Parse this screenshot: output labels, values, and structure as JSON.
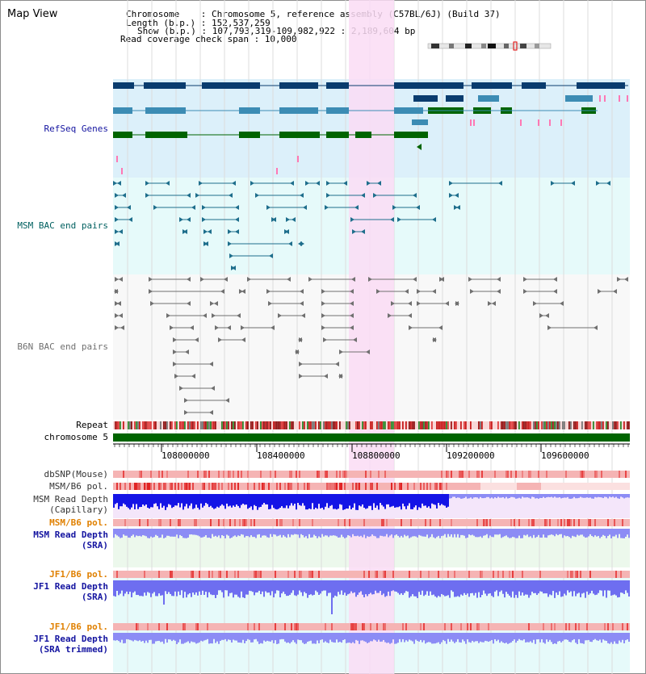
{
  "page": {
    "title": "Map View"
  },
  "info": {
    "chromosome": "Chromosome    : Chromosome 5, reference assembly (C57BL/6J) (Build 37)",
    "length": "Length (b.p.) : 152,537,259",
    "show": "Show (b.p.) : 107,793,319-109,982,922 : 2,189,604 bp",
    "span": "Read coverage check span : 10,000"
  },
  "tracks": {
    "refseq": {
      "label": "RefSeq Genes",
      "color": "#1414a0"
    },
    "msm_bac": {
      "label": "MSM BAC end pairs",
      "color": "#006060"
    },
    "b6n_bac": {
      "label": "B6N BAC end pairs",
      "color": "#707070"
    },
    "repeat": {
      "label": "Repeat"
    },
    "chromosome": {
      "label": "chromosome 5"
    },
    "dbsnp": {
      "label": "dbSNP(Mouse)"
    },
    "msm_b6_pol": {
      "label": "MSM/B6 pol."
    },
    "msm_depth_cap": {
      "label": "MSM Read Depth",
      "sub": "(Capillary)"
    },
    "msm_b6_pol2": {
      "label": "MSM/B6 pol.",
      "color": "#e08000"
    },
    "msm_depth_sra": {
      "label": "MSM Read Depth",
      "sub": "(SRA)",
      "color": "#1414a0"
    },
    "jf1_b6_pol": {
      "label": "JF1/B6 pol.",
      "color": "#e08000"
    },
    "jf1_depth_sra": {
      "label": "JF1 Read Depth",
      "sub": "(SRA)",
      "color": "#1414a0"
    },
    "jf1_b6_pol2": {
      "label": "JF1/B6 pol.",
      "color": "#e08000"
    },
    "jf1_depth_trim": {
      "label": "JF1 Read Depth",
      "sub": "(SRA trimmed)",
      "color": "#1414a0"
    }
  },
  "ruler": {
    "ticks": [
      "108000000",
      "108400000",
      "108800000",
      "109200000",
      "109600000"
    ]
  },
  "colors": {
    "highlight": "#fadcf4",
    "refseq_bg": "#dcf0fa",
    "gene_dark": "#0a3c6e",
    "gene_mid": "#3c8cb4",
    "gene_green": "#006400",
    "gene_pink": "#ff78b4",
    "chromosome_bar": "#006400",
    "snp_light": "#f5b4b4",
    "snp_dark": "#e63c3c",
    "depth_dark": "#1414e6",
    "depth_light": "#8c8cf5"
  }
}
